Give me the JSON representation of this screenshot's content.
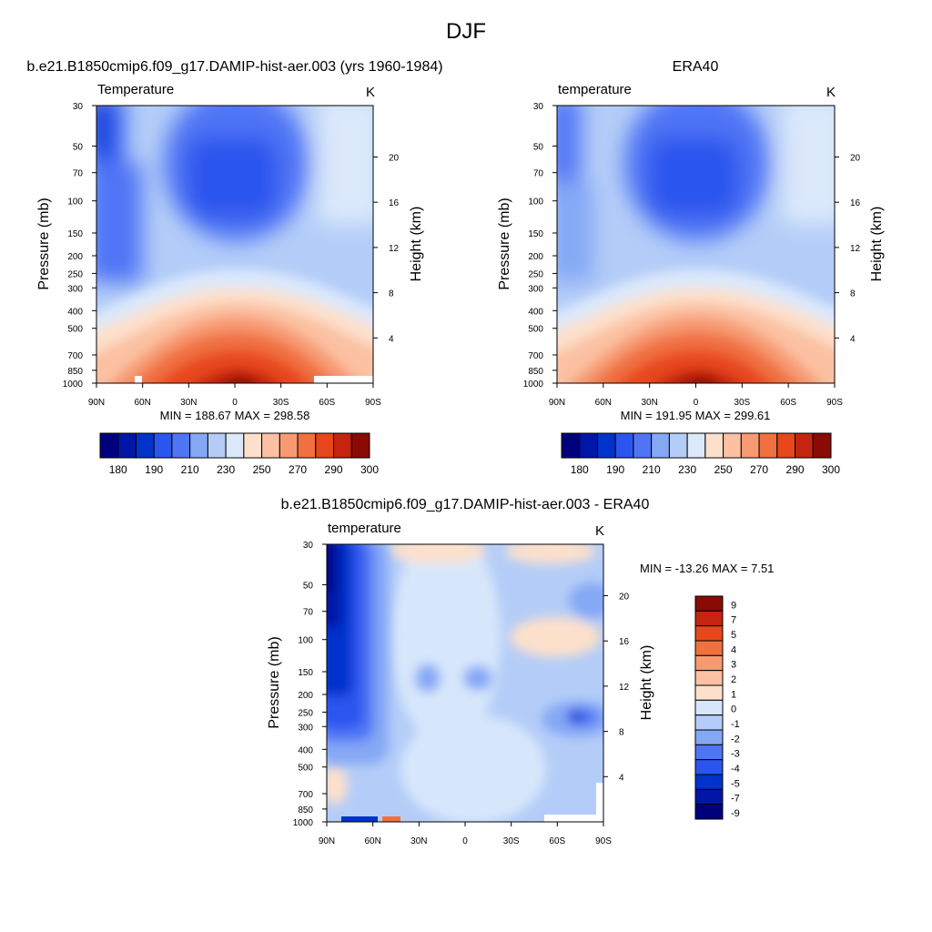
{
  "page_title": "DJF",
  "chart_data": [
    {
      "type": "contour",
      "id": "model",
      "title": "b.e21.B1850cmip6.f09_g17.DAMIP-hist-aer.003 (yrs 1960-1984)",
      "subtitle_left": "Temperature",
      "units": "K",
      "xlabel": "",
      "ylabel": "Pressure (mb)",
      "ylabel_right": "Height (km)",
      "x_ticks": [
        "90N",
        "60N",
        "30N",
        "0",
        "30S",
        "60S",
        "90S"
      ],
      "x_range": [
        90,
        -90
      ],
      "pressure_ticks": [
        "30",
        "50",
        "70",
        "100",
        "150",
        "200",
        "250",
        "300",
        "400",
        "500",
        "700",
        "850",
        "1000"
      ],
      "pressure_range": [
        30,
        1000
      ],
      "height_ticks": [
        "4",
        "8",
        "12",
        "16",
        "20"
      ],
      "min_max_text": "MIN = 188.67  MAX = 298.58",
      "min": 188.67,
      "max": 298.58,
      "colorbar_labels": [
        "180",
        "190",
        "210",
        "230",
        "250",
        "270",
        "290",
        "300"
      ]
    },
    {
      "type": "contour",
      "id": "obs",
      "title": "ERA40",
      "subtitle_left": "temperature",
      "units": "K",
      "xlabel": "",
      "ylabel": "Pressure (mb)",
      "ylabel_right": "Height (km)",
      "x_ticks": [
        "90N",
        "60N",
        "30N",
        "0",
        "30S",
        "60S",
        "90S"
      ],
      "x_range": [
        90,
        -90
      ],
      "pressure_ticks": [
        "30",
        "50",
        "70",
        "100",
        "150",
        "200",
        "250",
        "300",
        "400",
        "500",
        "700",
        "850",
        "1000"
      ],
      "pressure_range": [
        30,
        1000
      ],
      "height_ticks": [
        "4",
        "8",
        "12",
        "16",
        "20"
      ],
      "min_max_text": "MIN = 191.95  MAX = 299.61",
      "min": 191.95,
      "max": 299.61,
      "colorbar_labels": [
        "180",
        "190",
        "210",
        "230",
        "250",
        "270",
        "290",
        "300"
      ]
    },
    {
      "type": "contour",
      "id": "diff",
      "title": "b.e21.B1850cmip6.f09_g17.DAMIP-hist-aer.003 - ERA40",
      "subtitle_left": "temperature",
      "units": "K",
      "xlabel": "",
      "ylabel": "Pressure (mb)",
      "ylabel_right": "Height (km)",
      "x_ticks": [
        "90N",
        "60N",
        "30N",
        "0",
        "30S",
        "60S",
        "90S"
      ],
      "x_range": [
        90,
        -90
      ],
      "pressure_ticks": [
        "30",
        "50",
        "70",
        "100",
        "150",
        "200",
        "250",
        "300",
        "400",
        "500",
        "700",
        "850",
        "1000"
      ],
      "pressure_range": [
        30,
        1000
      ],
      "height_ticks": [
        "4",
        "8",
        "12",
        "16",
        "20"
      ],
      "min_max_text": "MIN = -13.26  MAX =   7.51",
      "min": -13.26,
      "max": 7.51,
      "colorbar_labels": [
        "9",
        "7",
        "5",
        "4",
        "3",
        "2",
        "1",
        "0",
        "-1",
        "-2",
        "-3",
        "-4",
        "-5",
        "-7",
        "-9"
      ]
    }
  ],
  "colors": {
    "temp_levels": [
      "#00007f",
      "#0016a6",
      "#0033cc",
      "#2a55ee",
      "#4f75f5",
      "#85a8f5",
      "#b4cdf8",
      "#dce9fb",
      "#fde0cc",
      "#fbc1a2",
      "#f79a72",
      "#f0703f",
      "#e8461c",
      "#c42410",
      "#8a0b03"
    ],
    "diff_levels": [
      "#8a0b03",
      "#c42410",
      "#e8461c",
      "#f0703f",
      "#f79a72",
      "#fbc1a2",
      "#fde0cc",
      "#d7e7fb",
      "#b4cdf8",
      "#85a8f5",
      "#4f75f5",
      "#2a55ee",
      "#0033cc",
      "#0016a6",
      "#00007f"
    ]
  }
}
